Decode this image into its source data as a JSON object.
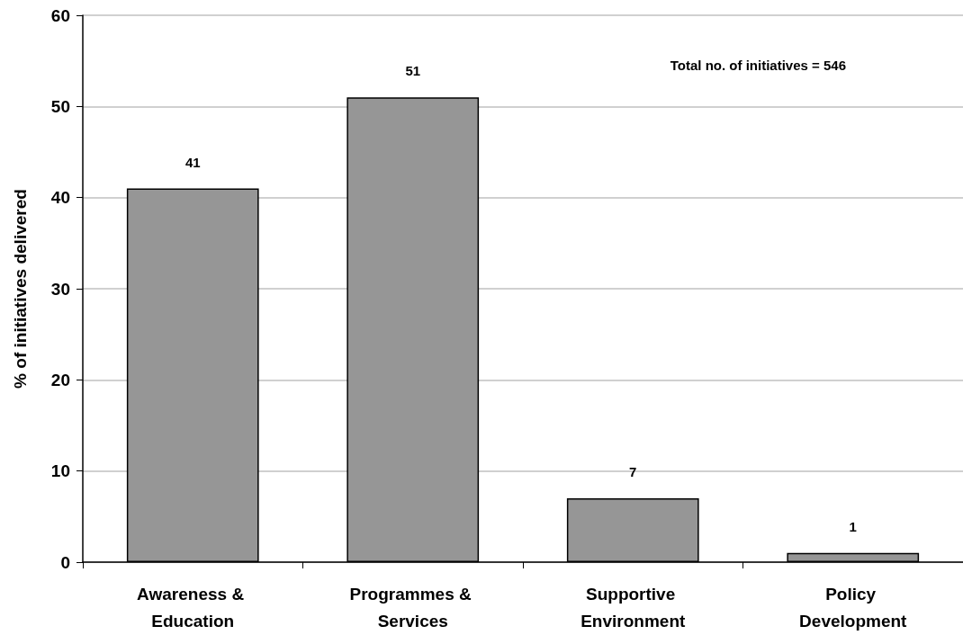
{
  "chart_data": {
    "type": "bar",
    "ylabel": "% of initiatives delivered",
    "categories": [
      "Awareness & Education",
      "Programmes & Services",
      "Supportive Environment",
      "Policy Development"
    ],
    "values": [
      41,
      51,
      7,
      1
    ],
    "color": "#969696",
    "ylim": [
      0,
      60
    ],
    "yticks": [
      0,
      10,
      20,
      30,
      40,
      50,
      60
    ],
    "grid": "y",
    "data_labels": true,
    "annotations": [
      "Total no. of initiatives = 546"
    ]
  }
}
